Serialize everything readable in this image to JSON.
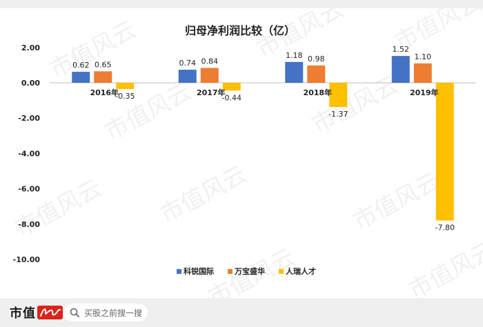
{
  "watermark": {
    "text": "市值风云"
  },
  "chart_data": {
    "type": "bar",
    "title": "归母净利润比较（亿）",
    "categories": [
      "2016年",
      "2017年",
      "2018年",
      "2019年"
    ],
    "series": [
      {
        "name": "科锐国际",
        "color": "#4472c4",
        "values": [
          0.62,
          0.74,
          1.18,
          1.52
        ],
        "labels": [
          "0.62",
          "0.74",
          "1.18",
          "1.52"
        ]
      },
      {
        "name": "万宝盛华",
        "color": "#ed7d31",
        "values": [
          0.65,
          0.84,
          0.98,
          1.1
        ],
        "labels": [
          "0.65",
          "0.84",
          "0.98",
          "1.10"
        ]
      },
      {
        "name": "人瑞人才",
        "color": "#ffc000",
        "values": [
          -0.35,
          -0.44,
          -1.37,
          -7.8
        ],
        "labels": [
          "-0.35",
          "-0.44",
          "-1.37",
          "-7.80"
        ]
      }
    ],
    "ylim": [
      -10,
      2
    ],
    "yticks": [
      2,
      0,
      -2,
      -4,
      -6,
      -8,
      -10
    ],
    "ytick_labels": [
      "2.00",
      "0.00",
      "-2.00",
      "-4.00",
      "-6.00",
      "-8.00",
      "-10.00"
    ],
    "xlabel": "",
    "ylabel": "",
    "grid": false,
    "legend_position": "bottom"
  },
  "footer": {
    "brand": "市值",
    "search_placeholder": "买股之前搜一搜"
  }
}
